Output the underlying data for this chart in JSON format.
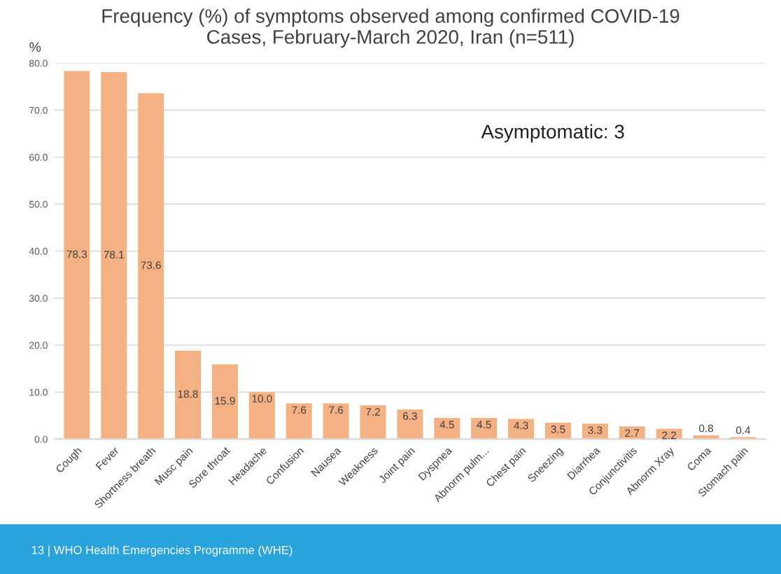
{
  "chart_data": {
    "type": "bar",
    "title": "Frequency (%) of symptoms observed among confirmed COVID-19\nCases, February-March 2020, Iran (n=511)",
    "ylabel": "%",
    "categories": [
      "Cough",
      "Fever",
      "Shortness breath",
      "Musc pain",
      "Sore throat",
      "Headache",
      "Confusion",
      "Nausea",
      "Weakness",
      "Joint pain",
      "Dyspnea",
      "Abnorm pulm...",
      "Chest pain",
      "Sneezing",
      "Diarrhea",
      "Conjunctivitis",
      "Abnorm Xray",
      "Coma",
      "Stomach pain"
    ],
    "values": [
      78.3,
      78.1,
      73.6,
      18.8,
      15.9,
      10.0,
      7.6,
      7.6,
      7.2,
      6.3,
      4.5,
      4.5,
      4.3,
      3.5,
      3.3,
      2.7,
      2.2,
      0.8,
      0.4
    ],
    "value_labels": [
      "78.3",
      "78.1",
      "73.6",
      "18.8",
      "15.9",
      "10.0",
      "7.6",
      "7.6",
      "7.2",
      "6.3",
      "4.5",
      "4.5",
      "4.3",
      "3.5",
      "3.3",
      "2.7",
      "2.2",
      "0.8",
      "0.4"
    ],
    "color": "#f4b183",
    "ylim": [
      0,
      80
    ],
    "yticks": [
      {
        "value": 0,
        "label": "0.0"
      },
      {
        "value": 10,
        "label": "10.0"
      },
      {
        "value": 20,
        "label": "20.0"
      },
      {
        "value": 30,
        "label": "30.0"
      },
      {
        "value": 40,
        "label": "40.0"
      },
      {
        "value": 50,
        "label": "50.0"
      },
      {
        "value": 60,
        "label": "60.0"
      },
      {
        "value": 70,
        "label": "70.0"
      },
      {
        "value": 80,
        "label": "80.0"
      }
    ],
    "grid": "y",
    "legend": false,
    "annotations": [
      "Asymptomatic: 3",
      "13 | WHO Health Emergencies Programme (WHE)"
    ]
  }
}
